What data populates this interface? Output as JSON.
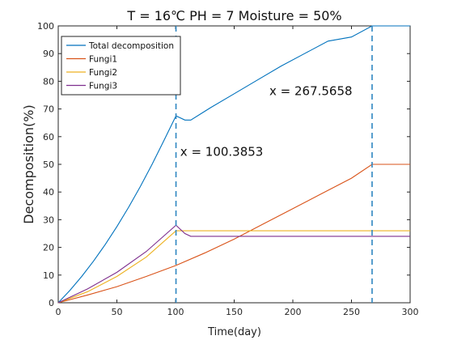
{
  "chart_data": {
    "type": "line",
    "title": "T = 16℃ PH = 7 Moisture = 50%",
    "xlabel": "Time(day)",
    "ylabel": "Decomposition(%)",
    "xlim": [
      0,
      300
    ],
    "ylim": [
      0,
      100
    ],
    "xticks": [
      0,
      50,
      100,
      150,
      200,
      250,
      300
    ],
    "yticks": [
      0,
      10,
      20,
      30,
      40,
      50,
      60,
      70,
      80,
      90,
      100
    ],
    "grid": false,
    "legend_position": "top-left",
    "vlines": [
      100.3853,
      267.5658
    ],
    "annotations": [
      {
        "text": "x = 100.3853",
        "x": 104,
        "y": 53
      },
      {
        "text": "x = 267.5658",
        "x": 180,
        "y": 75
      }
    ],
    "series": [
      {
        "name": "Total decomposition",
        "color": "#0072BD",
        "x": [
          0,
          10,
          20,
          30,
          40,
          50,
          60,
          70,
          80,
          90,
          100.3853,
          108,
          113,
          130,
          150,
          170,
          190,
          210,
          230,
          250,
          267.5658,
          280,
          300
        ],
        "y": [
          0,
          4.5,
          9.5,
          15,
          21,
          27.5,
          34.5,
          42,
          50,
          58.5,
          67.5,
          66,
          66,
          70.5,
          75.5,
          80.5,
          85.5,
          90,
          94.5,
          96,
          100,
          100,
          100
        ]
      },
      {
        "name": "Fungi1",
        "color": "#D95319",
        "x": [
          0,
          25,
          50,
          75,
          100.3853,
          125,
          150,
          175,
          200,
          225,
          250,
          267.5658,
          300
        ],
        "y": [
          0,
          2.8,
          5.8,
          9.5,
          13.5,
          18,
          23,
          28.5,
          34,
          39.5,
          45,
          50,
          50
        ]
      },
      {
        "name": "Fungi2",
        "color": "#EDB120",
        "x": [
          0,
          25,
          50,
          75,
          100.3853,
          300
        ],
        "y": [
          0,
          4,
          9.5,
          16.5,
          26,
          26
        ]
      },
      {
        "name": "Fungi3",
        "color": "#7E2F8E",
        "x": [
          0,
          25,
          50,
          75,
          100.3853,
          108,
          113,
          300
        ],
        "y": [
          0,
          5,
          11,
          18.5,
          28,
          25,
          24,
          24
        ]
      }
    ]
  }
}
